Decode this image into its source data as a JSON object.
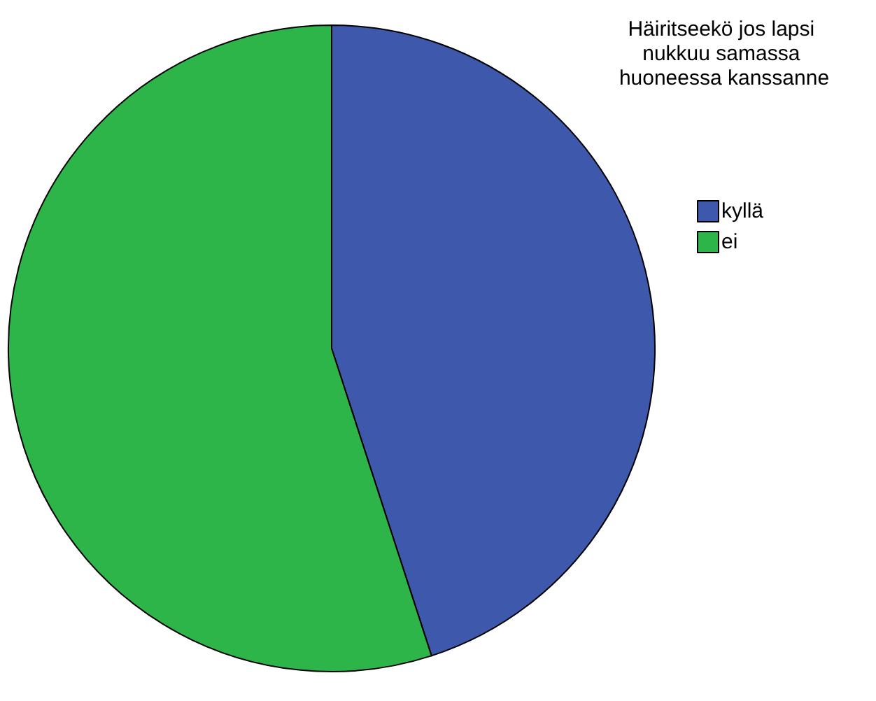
{
  "chart_data": {
    "type": "pie",
    "legend_title": "Häiritseekö jos lapsi nukkuu samassa huoneessa kanssanne",
    "categories": [
      "kyllä",
      "ei"
    ],
    "values": [
      45,
      55
    ],
    "colors": [
      "#3e58ac",
      "#2db54a"
    ],
    "legend": "top right"
  }
}
